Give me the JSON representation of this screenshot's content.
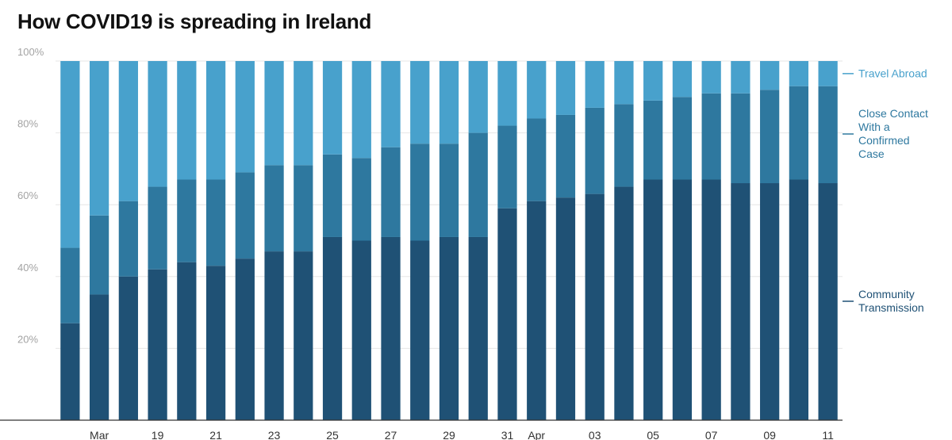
{
  "chart_data": {
    "type": "bar",
    "stacked": true,
    "title": "How COVID19 is spreading in Ireland",
    "x_labels": [
      "",
      "Mar",
      "",
      "19",
      "",
      "21",
      "",
      "23",
      "",
      "25",
      "",
      "27",
      "",
      "29",
      "",
      "31",
      "Apr",
      "",
      "03",
      "",
      "05",
      "",
      "07",
      "",
      "09",
      "",
      "11"
    ],
    "y_ticks": [
      "20%",
      "40%",
      "60%",
      "80%",
      "100%"
    ],
    "ylim": [
      0,
      100
    ],
    "grid": true,
    "legend_placement": "right",
    "series": [
      {
        "name": "Community Transmission",
        "color": "#1f5175",
        "values": [
          27,
          35,
          40,
          42,
          44,
          43,
          45,
          47,
          47,
          51,
          50,
          51,
          50,
          51,
          51,
          59,
          61,
          62,
          63,
          65,
          67,
          67,
          67,
          66,
          66,
          67,
          66
        ]
      },
      {
        "name": "Close Contact With a Confirmed Case",
        "color": "#2e789f",
        "values": [
          21,
          22,
          21,
          23,
          23,
          24,
          24,
          24,
          24,
          23,
          23,
          25,
          27,
          26,
          29,
          23,
          23,
          23,
          24,
          23,
          22,
          23,
          24,
          25,
          26,
          26,
          27
        ]
      },
      {
        "name": "Travel Abroad",
        "color": "#48a1cc",
        "values": [
          52,
          43,
          39,
          35,
          33,
          33,
          31,
          29,
          29,
          26,
          27,
          24,
          23,
          23,
          20,
          18,
          16,
          15,
          13,
          12,
          11,
          10,
          9,
          9,
          8,
          7,
          7
        ]
      }
    ],
    "legend": [
      {
        "lines": [
          "Travel Abroad"
        ],
        "color": "#48a1cc"
      },
      {
        "lines": [
          "Close Contact",
          "With a",
          "Confirmed",
          "Case"
        ],
        "color": "#2e789f"
      },
      {
        "lines": [
          "Community",
          "Transmission"
        ],
        "color": "#1f5175"
      }
    ],
    "colors": {
      "grid": "#e6e6e6",
      "baseline": "#333333",
      "tick_text": "#333333",
      "y_tick_text": "#a3a3a3"
    }
  }
}
